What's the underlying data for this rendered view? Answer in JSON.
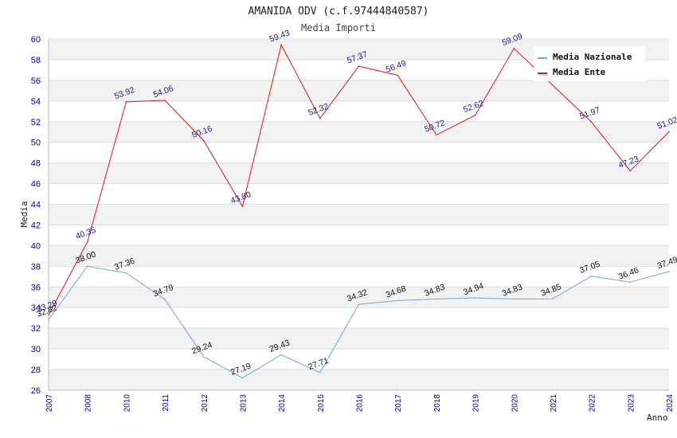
{
  "chart_data": {
    "type": "line",
    "title": "AMANIDA ODV (c.f.97444840587)",
    "subtitle": "Media Importi",
    "xlabel": "Anno",
    "ylabel": "Media",
    "ylim": [
      26,
      60
    ],
    "ytick_step": 2,
    "categories": [
      "2007",
      "2008",
      "2010",
      "2011",
      "2012",
      "2013",
      "2014",
      "2015",
      "2016",
      "2017",
      "2018",
      "2019",
      "2020",
      "2021",
      "2022",
      "2023",
      "2024"
    ],
    "series": [
      {
        "name": "Media Nazionale",
        "color": "#6aaae4",
        "values": [
          32.82,
          38.0,
          37.36,
          34.79,
          29.24,
          27.19,
          29.43,
          27.71,
          34.32,
          34.68,
          34.83,
          34.94,
          34.83,
          34.85,
          37.05,
          36.46,
          37.49
        ],
        "labels": [
          "32.82",
          "38.00",
          "37.36",
          "34.79",
          "29.24",
          "27.19",
          "29.43",
          "27.71",
          "34.32",
          "34.68",
          "34.83",
          "34.94",
          "34.83",
          "34.85",
          "37.05",
          "36.46",
          "37.49"
        ]
      },
      {
        "name": "Media Ente",
        "color": "#e8141c",
        "values": [
          33.29,
          40.35,
          53.92,
          54.06,
          50.16,
          43.8,
          59.43,
          52.32,
          57.37,
          56.49,
          50.72,
          52.62,
          59.09,
          null,
          51.97,
          47.23,
          51.02
        ],
        "labels": [
          "33.29",
          "40.35",
          "53.92",
          "54.06",
          "50.16",
          "43.80",
          "59.43",
          "52.32",
          "57.37",
          "56.49",
          "50.72",
          "52.62",
          "59.09",
          null,
          "51.97",
          "47.23",
          "51.02"
        ]
      }
    ],
    "legend_position": "top-right"
  }
}
